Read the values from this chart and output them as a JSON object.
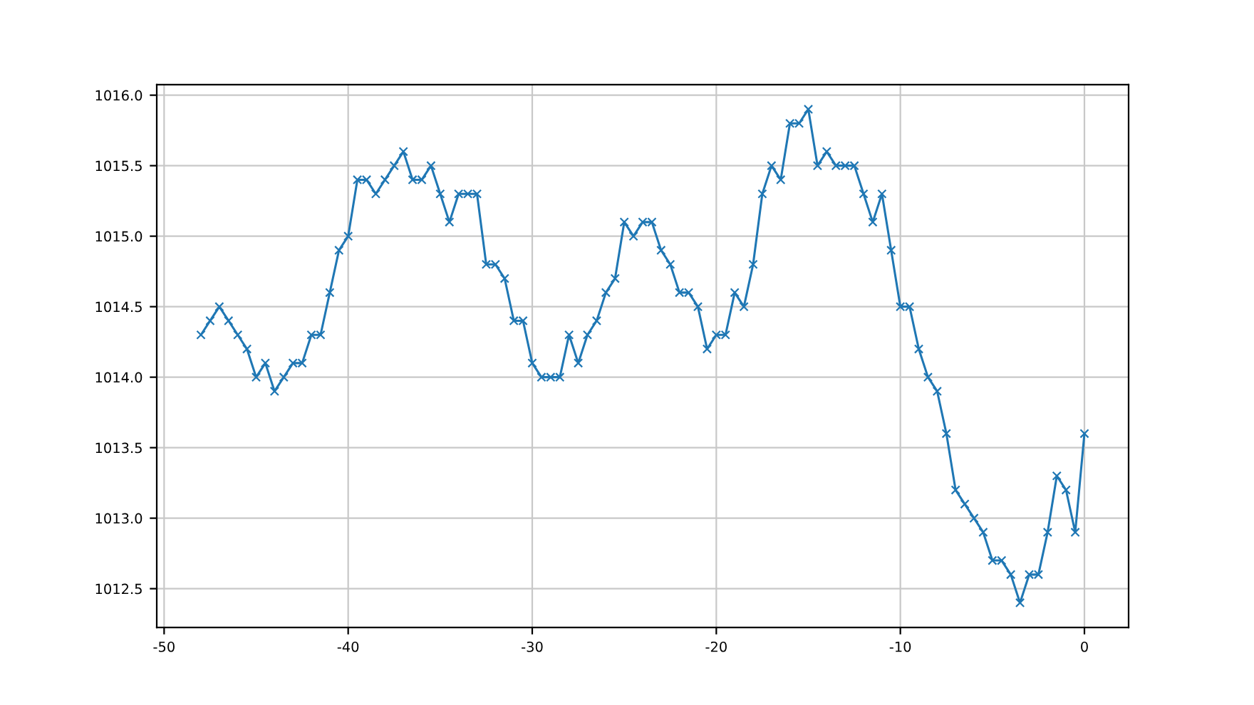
{
  "chart_data": {
    "type": "line",
    "x": [
      -48,
      -47.5,
      -47,
      -46.5,
      -46,
      -45.5,
      -45,
      -44.5,
      -44,
      -43.5,
      -43,
      -42.5,
      -42,
      -41.5,
      -41,
      -40.5,
      -40,
      -39.5,
      -39,
      -38.5,
      -38,
      -37.5,
      -37,
      -36.5,
      -36,
      -35.5,
      -35,
      -34.5,
      -34,
      -33.5,
      -33,
      -32.5,
      -32,
      -31.5,
      -31,
      -30.5,
      -30,
      -29.5,
      -29,
      -28.5,
      -28,
      -27.5,
      -27,
      -26.5,
      -26,
      -25.5,
      -25,
      -24.5,
      -24,
      -23.5,
      -23,
      -22.5,
      -22,
      -21.5,
      -21,
      -20.5,
      -20,
      -19.5,
      -19,
      -18.5,
      -18,
      -17.5,
      -17,
      -16.5,
      -16,
      -15.5,
      -15,
      -14.5,
      -14,
      -13.5,
      -13,
      -12.5,
      -12,
      -11.5,
      -11,
      -10.5,
      -10,
      -9.5,
      -9,
      -8.5,
      -8,
      -7.5,
      -7,
      -6.5,
      -6,
      -5.5,
      -5,
      -4.5,
      -4,
      -3.5,
      -3,
      -2.5,
      -2,
      -1.5,
      -1,
      -0.5,
      0
    ],
    "series": [
      {
        "color": "#1f77b4",
        "values": [
          1014.3,
          1014.4,
          1014.5,
          1014.4,
          1014.3,
          1014.2,
          1014.0,
          1014.1,
          1013.9,
          1014.0,
          1014.1,
          1014.1,
          1014.3,
          1014.3,
          1014.6,
          1014.9,
          1015.0,
          1015.4,
          1015.4,
          1015.3,
          1015.4,
          1015.5,
          1015.6,
          1015.4,
          1015.4,
          1015.5,
          1015.3,
          1015.1,
          1015.3,
          1015.3,
          1015.3,
          1014.8,
          1014.8,
          1014.7,
          1014.4,
          1014.4,
          1014.1,
          1014.0,
          1014.0,
          1014.0,
          1014.3,
          1014.1,
          1014.3,
          1014.4,
          1014.6,
          1014.7,
          1015.1,
          1015.0,
          1015.1,
          1015.1,
          1014.9,
          1014.8,
          1014.6,
          1014.6,
          1014.5,
          1014.2,
          1014.3,
          1014.3,
          1014.6,
          1014.5,
          1014.8,
          1015.3,
          1015.5,
          1015.4,
          1015.8,
          1015.8,
          1015.9,
          1015.5,
          1015.6,
          1015.5,
          1015.5,
          1015.5,
          1015.3,
          1015.1,
          1015.3,
          1014.9,
          1014.5,
          1014.5,
          1014.2,
          1014.0,
          1013.9,
          1013.6,
          1013.2,
          1013.1,
          1013.0,
          1012.9,
          1012.7,
          1012.7,
          1012.6,
          1012.4,
          1012.6,
          1012.6,
          1012.9,
          1013.3,
          1013.2,
          1012.9,
          1013.6
        ]
      }
    ],
    "xlim": [
      -50.4,
      2.4
    ],
    "xticks": [
      -50,
      -40,
      -30,
      -20,
      -10,
      0
    ],
    "ylim": [
      1012.225,
      1016.075
    ],
    "yticks": [
      1012.5,
      {
        "value": 1013,
        "label": "1013.0"
      },
      1013.5,
      {
        "value": 1014,
        "label": "1014.0"
      },
      1014.5,
      {
        "value": 1015,
        "label": "1015.0"
      },
      1015.5,
      {
        "value": 1016,
        "label": "1016.0"
      }
    ],
    "grid": true,
    "marker": "cross",
    "line_style": "solid"
  }
}
